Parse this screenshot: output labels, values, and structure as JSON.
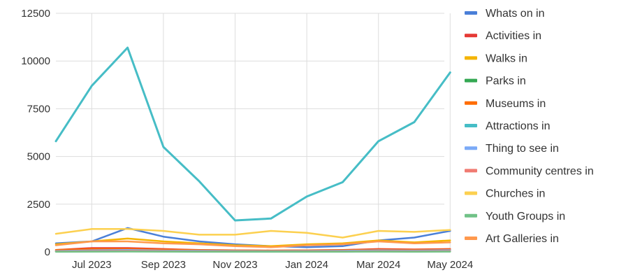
{
  "chart_data": {
    "type": "line",
    "x": [
      "Jun 2023",
      "Jul 2023",
      "Aug 2023",
      "Sep 2023",
      "Oct 2023",
      "Nov 2023",
      "Dec 2023",
      "Jan 2024",
      "Feb 2024",
      "Mar 2024",
      "Apr 2024",
      "May 2024"
    ],
    "x_tick_labels": [
      "Jul 2023",
      "Sep 2023",
      "Nov 2023",
      "Jan 2024",
      "Mar 2024",
      "May 2024"
    ],
    "y_tick_labels": [
      "0",
      "2500",
      "5000",
      "7500",
      "10000",
      "12500"
    ],
    "ylim": [
      0,
      12500
    ],
    "grid": true,
    "legend_position": "right",
    "series": [
      {
        "name": "Whats on in",
        "color": "#4a7fd8",
        "values": [
          450,
          550,
          1250,
          800,
          550,
          400,
          300,
          250,
          300,
          600,
          750,
          1100
        ]
      },
      {
        "name": "Activities in",
        "color": "#e53935",
        "values": [
          100,
          200,
          200,
          150,
          100,
          80,
          70,
          80,
          100,
          150,
          130,
          150
        ]
      },
      {
        "name": "Walks in",
        "color": "#f4b400",
        "values": [
          400,
          550,
          700,
          550,
          450,
          350,
          300,
          400,
          450,
          600,
          500,
          600
        ]
      },
      {
        "name": "Parks in",
        "color": "#34a853",
        "values": [
          20,
          30,
          40,
          30,
          20,
          15,
          10,
          15,
          20,
          30,
          25,
          30
        ]
      },
      {
        "name": "Museums in",
        "color": "#ff6d00",
        "values": [
          100,
          150,
          150,
          120,
          90,
          80,
          70,
          80,
          90,
          120,
          110,
          130
        ]
      },
      {
        "name": "Attractions in",
        "color": "#46bdc6",
        "values": [
          5800,
          8700,
          10700,
          5500,
          3700,
          1650,
          1750,
          2900,
          3650,
          5800,
          6800,
          9400
        ]
      },
      {
        "name": "Thing to see in",
        "color": "#7baaf7",
        "values": [
          50,
          80,
          100,
          70,
          60,
          50,
          40,
          50,
          60,
          80,
          70,
          90
        ]
      },
      {
        "name": "Community centres in",
        "color": "#f07b72",
        "values": [
          30,
          40,
          50,
          40,
          30,
          25,
          20,
          25,
          30,
          40,
          35,
          45
        ]
      },
      {
        "name": "Churches in",
        "color": "#fcd04f",
        "values": [
          950,
          1200,
          1200,
          1100,
          900,
          900,
          1100,
          1000,
          750,
          1100,
          1050,
          1150
        ]
      },
      {
        "name": "Youth Groups in",
        "color": "#71c287",
        "values": [
          10,
          15,
          20,
          15,
          10,
          8,
          6,
          8,
          10,
          15,
          12,
          15
        ]
      },
      {
        "name": "Art Galleries in",
        "color": "#ff994d",
        "values": [
          350,
          550,
          550,
          450,
          400,
          300,
          250,
          350,
          400,
          550,
          450,
          500
        ]
      }
    ]
  }
}
